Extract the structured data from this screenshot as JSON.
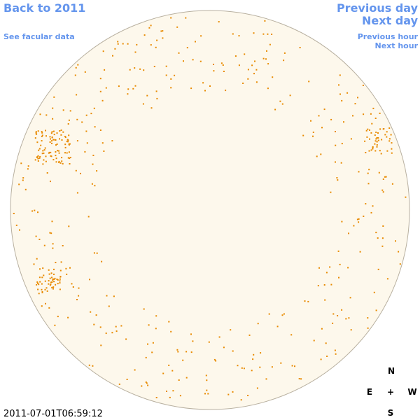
{
  "nav": {
    "back": "Back to 2011",
    "see_data": "See facular data",
    "previous_day": "Previous day",
    "next_day": "Next day",
    "previous_hour": "Previous hour",
    "next_hour": "Next hour"
  },
  "timestamp": "2011-07-01T06:59:12",
  "compass": {
    "north": "N",
    "east": "E",
    "center": "+",
    "west": "W",
    "south": "S"
  }
}
